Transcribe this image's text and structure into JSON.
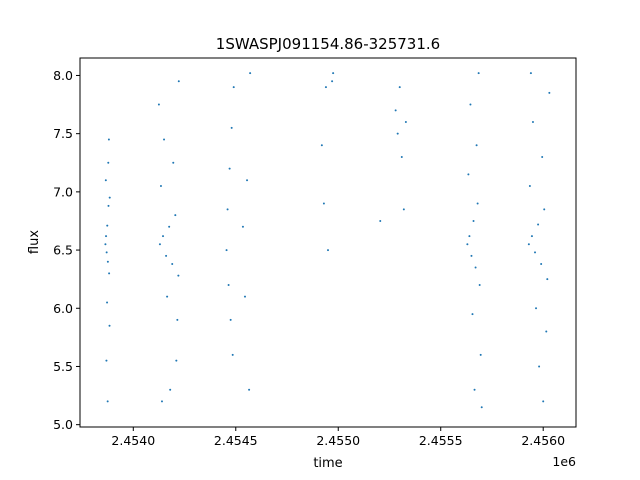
{
  "chart_data": {
    "type": "scatter",
    "title": "1SWASPJ091154.86-325731.6",
    "xlabel": "time",
    "ylabel": "flux",
    "x_offset_label": "1e6",
    "xlim": [
      2453740,
      2456160
    ],
    "ylim": [
      4.98,
      8.15
    ],
    "x_ticks": [
      2.454,
      2.4545,
      2.455,
      2.4555,
      2.456
    ],
    "x_tick_labels": [
      "2.4540",
      "2.4545",
      "2.4550",
      "2.4555",
      "2.4560"
    ],
    "y_ticks": [
      5.0,
      5.5,
      6.0,
      6.5,
      7.0,
      7.5,
      8.0
    ],
    "y_tick_labels": [
      "5.0",
      "5.5",
      "6.0",
      "6.5",
      "7.0",
      "7.5",
      "8.0"
    ],
    "grid": false,
    "marker_color": "#1f77b4",
    "series": [
      {
        "values": [
          {
            "x": 2453864,
            "y": 6.55
          },
          {
            "x": 2453867,
            "y": 6.62
          },
          {
            "x": 2453870,
            "y": 6.48
          },
          {
            "x": 2453873,
            "y": 6.71
          },
          {
            "x": 2453876,
            "y": 6.4
          },
          {
            "x": 2453879,
            "y": 6.88
          },
          {
            "x": 2453882,
            "y": 6.3
          },
          {
            "x": 2453885,
            "y": 6.95
          },
          {
            "x": 2453866,
            "y": 7.1
          },
          {
            "x": 2453872,
            "y": 6.05
          },
          {
            "x": 2453878,
            "y": 7.25
          },
          {
            "x": 2453884,
            "y": 5.85
          },
          {
            "x": 2453869,
            "y": 5.55
          },
          {
            "x": 2453881,
            "y": 7.45
          },
          {
            "x": 2453875,
            "y": 5.2
          },
          {
            "x": 2454130,
            "y": 6.55
          },
          {
            "x": 2454145,
            "y": 6.62
          },
          {
            "x": 2454160,
            "y": 6.45
          },
          {
            "x": 2454175,
            "y": 6.7
          },
          {
            "x": 2454190,
            "y": 6.38
          },
          {
            "x": 2454205,
            "y": 6.8
          },
          {
            "x": 2454220,
            "y": 6.28
          },
          {
            "x": 2454135,
            "y": 7.05
          },
          {
            "x": 2454165,
            "y": 6.1
          },
          {
            "x": 2454195,
            "y": 7.25
          },
          {
            "x": 2454215,
            "y": 5.9
          },
          {
            "x": 2454150,
            "y": 7.45
          },
          {
            "x": 2454210,
            "y": 5.55
          },
          {
            "x": 2454125,
            "y": 7.75
          },
          {
            "x": 2454222,
            "y": 7.95
          },
          {
            "x": 2454180,
            "y": 5.3
          },
          {
            "x": 2454140,
            "y": 5.2
          },
          {
            "x": 2454455,
            "y": 6.5
          },
          {
            "x": 2454460,
            "y": 6.85
          },
          {
            "x": 2454465,
            "y": 6.2
          },
          {
            "x": 2454470,
            "y": 7.2
          },
          {
            "x": 2454475,
            "y": 5.9
          },
          {
            "x": 2454480,
            "y": 7.55
          },
          {
            "x": 2454485,
            "y": 5.6
          },
          {
            "x": 2454490,
            "y": 7.9
          },
          {
            "x": 2454535,
            "y": 6.7
          },
          {
            "x": 2454545,
            "y": 6.1
          },
          {
            "x": 2454555,
            "y": 7.1
          },
          {
            "x": 2454565,
            "y": 5.3
          },
          {
            "x": 2454570,
            "y": 8.02
          },
          {
            "x": 2454920,
            "y": 7.4
          },
          {
            "x": 2454930,
            "y": 6.9
          },
          {
            "x": 2454940,
            "y": 7.9
          },
          {
            "x": 2454950,
            "y": 6.5
          },
          {
            "x": 2454970,
            "y": 7.95
          },
          {
            "x": 2454975,
            "y": 8.02
          },
          {
            "x": 2455280,
            "y": 7.7
          },
          {
            "x": 2455290,
            "y": 7.5
          },
          {
            "x": 2455300,
            "y": 7.9
          },
          {
            "x": 2455310,
            "y": 7.3
          },
          {
            "x": 2455320,
            "y": 6.85
          },
          {
            "x": 2455330,
            "y": 7.6
          },
          {
            "x": 2455205,
            "y": 6.75
          },
          {
            "x": 2455630,
            "y": 6.55
          },
          {
            "x": 2455640,
            "y": 6.62
          },
          {
            "x": 2455650,
            "y": 6.45
          },
          {
            "x": 2455660,
            "y": 6.75
          },
          {
            "x": 2455670,
            "y": 6.35
          },
          {
            "x": 2455680,
            "y": 6.9
          },
          {
            "x": 2455690,
            "y": 6.2
          },
          {
            "x": 2455635,
            "y": 7.15
          },
          {
            "x": 2455655,
            "y": 5.95
          },
          {
            "x": 2455675,
            "y": 7.4
          },
          {
            "x": 2455695,
            "y": 5.6
          },
          {
            "x": 2455645,
            "y": 7.75
          },
          {
            "x": 2455665,
            "y": 5.3
          },
          {
            "x": 2455685,
            "y": 8.02
          },
          {
            "x": 2455700,
            "y": 5.15
          },
          {
            "x": 2455930,
            "y": 6.55
          },
          {
            "x": 2455945,
            "y": 6.62
          },
          {
            "x": 2455960,
            "y": 6.48
          },
          {
            "x": 2455975,
            "y": 6.72
          },
          {
            "x": 2455990,
            "y": 6.38
          },
          {
            "x": 2456005,
            "y": 6.85
          },
          {
            "x": 2456020,
            "y": 6.25
          },
          {
            "x": 2455935,
            "y": 7.05
          },
          {
            "x": 2455965,
            "y": 6.0
          },
          {
            "x": 2455995,
            "y": 7.3
          },
          {
            "x": 2456015,
            "y": 5.8
          },
          {
            "x": 2455950,
            "y": 7.6
          },
          {
            "x": 2455980,
            "y": 5.5
          },
          {
            "x": 2456030,
            "y": 7.85
          },
          {
            "x": 2455940,
            "y": 8.02
          },
          {
            "x": 2456000,
            "y": 5.2
          }
        ]
      }
    ]
  }
}
